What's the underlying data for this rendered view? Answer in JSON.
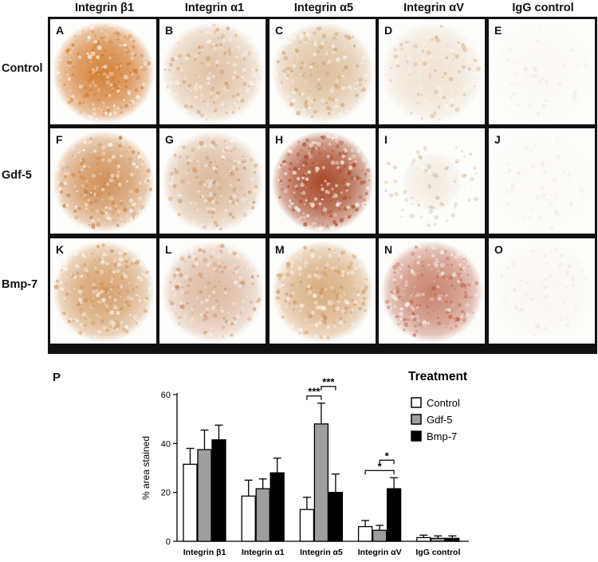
{
  "column_headers": [
    "Integrin β1",
    "Integrin α1",
    "Integrin α5",
    "Integrin αV",
    "IgG control"
  ],
  "row_headers": [
    "Control",
    "Gdf-5",
    "Bmp-7"
  ],
  "panel_letters": [
    "A",
    "B",
    "C",
    "D",
    "E",
    "F",
    "G",
    "H",
    "I",
    "J",
    "K",
    "L",
    "M",
    "N",
    "O"
  ],
  "panel_tints": [
    [
      "#d27a2e",
      "#c9915f",
      "#c8975f",
      "#c8925a",
      "#ead8cc"
    ],
    [
      "#c97f3f",
      "#c48a5a",
      "#a84a2a",
      "#c8a070",
      "#eadcd2"
    ],
    [
      "#cc8a4a",
      "#c48258",
      "#c98a4a",
      "#b75a3e",
      "#e8d6c8"
    ]
  ],
  "panel_intensity": [
    [
      0.95,
      0.55,
      0.6,
      0.25,
      0.08
    ],
    [
      0.85,
      0.6,
      1.0,
      0.2,
      0.07
    ],
    [
      0.8,
      0.55,
      0.7,
      0.75,
      0.12
    ]
  ],
  "chart_label": "P",
  "chart_data": {
    "type": "bar",
    "categories": [
      "Integrin β1",
      "Integrin α1",
      "Integrin α5",
      "Integrin αV",
      "IgG control"
    ],
    "series": [
      {
        "name": "Control",
        "color": "#ffffff",
        "values": [
          31.5,
          18.5,
          13,
          6,
          1.5
        ],
        "errors": [
          6.5,
          6.5,
          5,
          2.5,
          1
        ]
      },
      {
        "name": "Gdf-5",
        "color": "#9e9e9e",
        "values": [
          37.5,
          21.5,
          48,
          4.5,
          1.2
        ],
        "errors": [
          8,
          4,
          8.5,
          2,
          1
        ]
      },
      {
        "name": "Bmp-7",
        "color": "#000000",
        "values": [
          41.5,
          28,
          20,
          21.5,
          1.2
        ],
        "errors": [
          6,
          6,
          7.5,
          4.5,
          1
        ]
      }
    ],
    "ylabel": "% area stained",
    "yticks": [
      0,
      20,
      40,
      60
    ],
    "ylim": [
      0,
      62
    ],
    "legend_title": "Treatment",
    "legend_position": "top-right",
    "significance": [
      {
        "category": "Integrin α5",
        "from": "Control",
        "to": "Gdf-5",
        "label": "***"
      },
      {
        "category": "Integrin α5",
        "from": "Gdf-5",
        "to": "Bmp-7",
        "label": "***"
      },
      {
        "category": "Integrin αV",
        "from": "Control",
        "to": "Bmp-7",
        "label": "*"
      },
      {
        "category": "Integrin αV",
        "from": "Gdf-5",
        "to": "Bmp-7",
        "label": "*"
      }
    ]
  }
}
